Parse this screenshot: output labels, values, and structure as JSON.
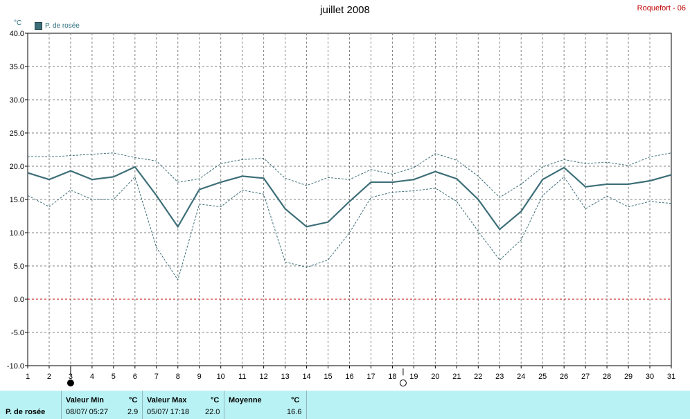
{
  "title": "juillet 2008",
  "station": "Roquefort - 06",
  "legend": {
    "label": "P. de rosée",
    "color": "#3d6f78"
  },
  "unit": "°C",
  "chart_data": {
    "type": "line",
    "x": [
      1,
      2,
      3,
      4,
      5,
      6,
      7,
      8,
      9,
      10,
      11,
      12,
      13,
      14,
      15,
      16,
      17,
      18,
      19,
      20,
      21,
      22,
      23,
      24,
      25,
      26,
      27,
      28,
      29,
      30,
      31
    ],
    "series": [
      {
        "name": "P. de rosée",
        "role": "mean",
        "color": "#3d6f78",
        "values": [
          19.0,
          18.0,
          19.3,
          18.0,
          18.4,
          19.9,
          15.6,
          10.9,
          16.5,
          17.6,
          18.5,
          18.2,
          13.6,
          10.9,
          11.6,
          14.7,
          17.6,
          17.6,
          18.0,
          19.2,
          18.1,
          15.0,
          10.5,
          13.2,
          18.0,
          19.8,
          16.9,
          17.3,
          17.3,
          17.8,
          18.7
        ]
      },
      {
        "role": "max",
        "color": "#3d6f78",
        "values": [
          21.4,
          21.4,
          21.6,
          21.8,
          22.0,
          21.3,
          20.8,
          17.6,
          18.1,
          20.4,
          21.0,
          21.2,
          18.2,
          17.1,
          18.3,
          18.0,
          19.5,
          18.8,
          19.8,
          21.9,
          20.9,
          18.5,
          15.3,
          17.3,
          19.9,
          21.0,
          20.4,
          20.6,
          20.1,
          21.4,
          22.0
        ]
      },
      {
        "role": "min",
        "color": "#3d6f78",
        "values": [
          15.6,
          13.9,
          16.4,
          15.0,
          15.0,
          18.4,
          7.8,
          2.9,
          14.3,
          13.9,
          16.4,
          15.8,
          5.6,
          4.8,
          5.9,
          10.0,
          15.3,
          16.1,
          16.3,
          16.7,
          14.7,
          10.2,
          5.9,
          8.9,
          15.6,
          18.4,
          13.6,
          15.5,
          13.9,
          14.7,
          14.4
        ]
      }
    ],
    "ylim": [
      -10,
      40
    ],
    "yticks": [
      "-10.0",
      "-5.0",
      "0.0",
      "5.0",
      "10.0",
      "15.0",
      "20.0",
      "25.0",
      "30.0",
      "35.0",
      "40.0"
    ],
    "xticks": [
      "1",
      "2",
      "3",
      "4",
      "5",
      "6",
      "7",
      "8",
      "9",
      "10",
      "11",
      "12",
      "13",
      "14",
      "15",
      "16",
      "17",
      "18",
      "19",
      "20",
      "21",
      "22",
      "23",
      "24",
      "25",
      "26",
      "27",
      "28",
      "29",
      "30",
      "31"
    ],
    "grid": true,
    "zero_line_color": "#c00000",
    "moon_phases": [
      {
        "day": 3,
        "phase": "new-moon-icon"
      },
      {
        "day": 18.5,
        "phase": "full-moon-icon"
      }
    ]
  },
  "footer": {
    "series_label": "P. de rosée",
    "min": {
      "label": "Valeur Min",
      "unit": "°C",
      "date": "08/07/  05:27",
      "value": "2.9"
    },
    "max": {
      "label": "Valeur Max",
      "unit": "°C",
      "date": "05/07/  17:18",
      "value": "22.0"
    },
    "mean": {
      "label": "Moyenne",
      "unit": "°C",
      "value": "16.6"
    }
  }
}
